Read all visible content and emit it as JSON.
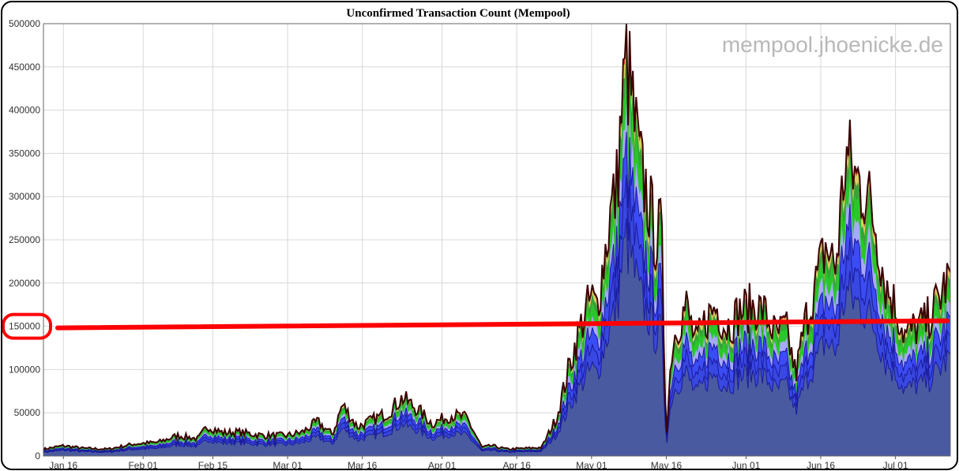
{
  "chart_data": {
    "type": "area",
    "title": "Unconfirmed Transaction Count (Mempool)",
    "watermark": "mempool.jhoenicke.de",
    "xlabel": "",
    "ylabel": "",
    "ylim": [
      0,
      500000
    ],
    "y_ticks": [
      0,
      50000,
      100000,
      150000,
      200000,
      250000,
      300000,
      350000,
      400000,
      450000,
      500000
    ],
    "y_tick_labels": [
      "0",
      "50000",
      "100000",
      "150000",
      "200000",
      "250000",
      "300000",
      "350000",
      "400000",
      "450000",
      "500000"
    ],
    "x_range": [
      "2024-01-12",
      "2024-07-12"
    ],
    "x_ticks": [
      "2024-01-16",
      "2024-02-01",
      "2024-02-15",
      "2024-03-01",
      "2024-03-16",
      "2024-04-01",
      "2024-04-16",
      "2024-05-01",
      "2024-05-16",
      "2024-06-01",
      "2024-06-16",
      "2024-07-01"
    ],
    "x_tick_labels": [
      "Jan 16",
      "Feb 01",
      "Feb 15",
      "Mar 01",
      "Mar 16",
      "Apr 01",
      "Apr 16",
      "May 01",
      "May 16",
      "Jun 01",
      "Jun 16",
      "Jul 01"
    ],
    "grid": true,
    "total": {
      "x": [
        "2024-01-12",
        "2024-01-16",
        "2024-01-20",
        "2024-01-25",
        "2024-01-30",
        "2024-02-04",
        "2024-02-08",
        "2024-02-12",
        "2024-02-14",
        "2024-02-17",
        "2024-02-20",
        "2024-02-25",
        "2024-03-01",
        "2024-03-04",
        "2024-03-07",
        "2024-03-10",
        "2024-03-12",
        "2024-03-15",
        "2024-03-18",
        "2024-03-21",
        "2024-03-24",
        "2024-03-27",
        "2024-03-30",
        "2024-04-03",
        "2024-04-06",
        "2024-04-09",
        "2024-04-11",
        "2024-04-14",
        "2024-04-18",
        "2024-04-21",
        "2024-04-24",
        "2024-04-27",
        "2024-04-29",
        "2024-05-01",
        "2024-05-02",
        "2024-05-03",
        "2024-05-04",
        "2024-05-05",
        "2024-05-06",
        "2024-05-07",
        "2024-05-08",
        "2024-05-09",
        "2024-05-10",
        "2024-05-11",
        "2024-05-12",
        "2024-05-13",
        "2024-05-14",
        "2024-05-15",
        "2024-05-16",
        "2024-05-17",
        "2024-05-18",
        "2024-05-20",
        "2024-05-22",
        "2024-05-24",
        "2024-05-26",
        "2024-05-28",
        "2024-05-31",
        "2024-06-03",
        "2024-06-05",
        "2024-06-07",
        "2024-06-09",
        "2024-06-11",
        "2024-06-13",
        "2024-06-15",
        "2024-06-17",
        "2024-06-19",
        "2024-06-21",
        "2024-06-22",
        "2024-06-23",
        "2024-06-25",
        "2024-06-27",
        "2024-06-29",
        "2024-07-01",
        "2024-07-03",
        "2024-07-05",
        "2024-07-07",
        "2024-07-09",
        "2024-07-11",
        "2024-07-12"
      ],
      "y": [
        8000,
        12000,
        9000,
        8000,
        14000,
        16000,
        24000,
        20000,
        35000,
        27000,
        28000,
        24000,
        24000,
        28000,
        40000,
        25000,
        60000,
        34000,
        42000,
        50000,
        68000,
        55000,
        38000,
        48000,
        44000,
        10000,
        12000,
        8000,
        9000,
        10000,
        45000,
        115000,
        155000,
        185000,
        172000,
        210000,
        250000,
        290000,
        310000,
        400000,
        460000,
        420000,
        370000,
        330000,
        310000,
        280000,
        250000,
        270000,
        20000,
        120000,
        150000,
        175000,
        130000,
        160000,
        175000,
        150000,
        170000,
        175000,
        165000,
        140000,
        150000,
        95000,
        160000,
        200000,
        245000,
        220000,
        350000,
        340000,
        325000,
        310000,
        270000,
        200000,
        175000,
        140000,
        150000,
        155000,
        175000,
        200000,
        210000
      ]
    },
    "annotation": {
      "label": "150000",
      "line_value": 150000,
      "color": "#ff0000"
    },
    "colors": {
      "outline": "#3a0000",
      "navy": "#4a5aa0",
      "blue": "#3c4cf5",
      "lavender": "#a8a8ff",
      "green": "#28c828",
      "dark_green": "#3aa03a",
      "light_green": "#a0e8a0",
      "yellow": "#d8d060",
      "red": "#c83030"
    }
  }
}
